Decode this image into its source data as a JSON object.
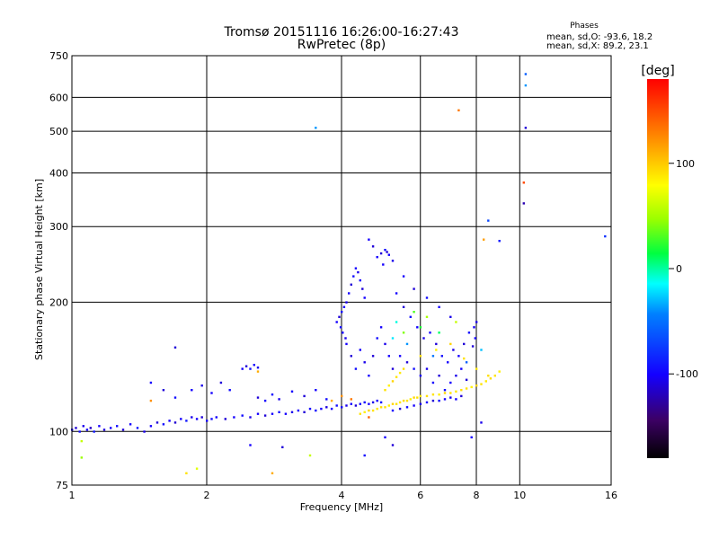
{
  "chart_data": {
    "type": "scatter",
    "title": "Tromsø 20151116 16:26:00-16:27:43",
    "subtitle": "RwPretec (8p)",
    "xlabel": "Frequency [MHz]",
    "ylabel": "Stationary phase Virtual Height [km]",
    "xscale": "log",
    "yscale": "log",
    "xlim": [
      1,
      16
    ],
    "ylim": [
      75,
      750
    ],
    "xticks": [
      1,
      2,
      4,
      6,
      8,
      10,
      16
    ],
    "yticks": [
      75,
      100,
      200,
      300,
      400,
      500,
      600,
      750
    ],
    "grid": true,
    "stats": {
      "heading": "Phases",
      "line_o": "mean, sd,O: -93.6, 18.2",
      "line_x": "mean, sd,X:  89.2, 23.1"
    },
    "colorbar": {
      "label": "[deg]",
      "range": [
        -180,
        180
      ],
      "ticks": [
        100,
        0,
        -100
      ]
    },
    "series": [
      {
        "points": [
          [
            1.0,
            101,
            -100
          ],
          [
            1.02,
            102,
            -110
          ],
          [
            1.04,
            100,
            -95
          ],
          [
            1.06,
            103,
            -105
          ],
          [
            1.08,
            101,
            -100
          ],
          [
            1.1,
            102,
            -115
          ],
          [
            1.12,
            100,
            -90
          ],
          [
            1.15,
            103,
            -100
          ],
          [
            1.18,
            101,
            -108
          ],
          [
            1.22,
            102,
            -100
          ],
          [
            1.26,
            103,
            -95
          ],
          [
            1.3,
            101,
            -110
          ],
          [
            1.35,
            104,
            -100
          ],
          [
            1.4,
            102,
            -90
          ],
          [
            1.45,
            100,
            -105
          ],
          [
            1.5,
            103,
            -100
          ],
          [
            1.55,
            105,
            -110
          ],
          [
            1.6,
            104,
            -95
          ],
          [
            1.65,
            106,
            -100
          ],
          [
            1.7,
            105,
            -112
          ],
          [
            1.75,
            107,
            -100
          ],
          [
            1.8,
            106,
            -90
          ],
          [
            1.85,
            108,
            -105
          ],
          [
            1.9,
            107,
            -100
          ],
          [
            1.95,
            108,
            -110
          ],
          [
            2.0,
            106,
            -100
          ],
          [
            2.05,
            107,
            -95
          ],
          [
            2.1,
            108,
            -100
          ],
          [
            2.2,
            107,
            -110
          ],
          [
            2.3,
            108,
            -100
          ],
          [
            2.4,
            109,
            -95
          ],
          [
            2.5,
            108,
            -105
          ],
          [
            2.6,
            110,
            -100
          ],
          [
            2.7,
            109,
            -110
          ],
          [
            2.8,
            110,
            -100
          ],
          [
            2.9,
            111,
            -95
          ],
          [
            3.0,
            110,
            -100
          ],
          [
            3.1,
            111,
            -105
          ],
          [
            3.2,
            112,
            -100
          ],
          [
            3.3,
            111,
            -110
          ],
          [
            3.4,
            113,
            -100
          ],
          [
            3.5,
            112,
            -95
          ],
          [
            3.6,
            113,
            -100
          ],
          [
            3.7,
            114,
            -108
          ],
          [
            3.8,
            113,
            -100
          ],
          [
            3.9,
            115,
            -95
          ],
          [
            4.0,
            114,
            -100
          ],
          [
            4.1,
            115,
            -105
          ],
          [
            4.2,
            116,
            -100
          ],
          [
            4.3,
            115,
            -110
          ],
          [
            4.4,
            116,
            -100
          ],
          [
            4.5,
            117,
            -95
          ],
          [
            4.6,
            116,
            -100
          ],
          [
            4.7,
            117,
            -105
          ],
          [
            4.8,
            118,
            -100
          ],
          [
            4.9,
            117,
            -90
          ],
          [
            1.5,
            130,
            -100
          ],
          [
            1.6,
            125,
            -110
          ],
          [
            1.7,
            120,
            -95
          ],
          [
            1.85,
            125,
            -100
          ],
          [
            1.95,
            128,
            -105
          ],
          [
            2.05,
            123,
            -100
          ],
          [
            2.15,
            130,
            -110
          ],
          [
            2.25,
            125,
            -95
          ],
          [
            2.4,
            140,
            -100
          ],
          [
            2.45,
            142,
            -110
          ],
          [
            2.5,
            140,
            -95
          ],
          [
            2.55,
            143,
            -100
          ],
          [
            2.6,
            141,
            -105
          ],
          [
            2.6,
            120,
            -110
          ],
          [
            2.7,
            118,
            -100
          ],
          [
            2.8,
            122,
            -95
          ],
          [
            2.9,
            119,
            -105
          ],
          [
            3.1,
            124,
            -100
          ],
          [
            3.3,
            121,
            -110
          ],
          [
            3.5,
            125,
            -100
          ],
          [
            3.7,
            119,
            -95
          ],
          [
            1.7,
            157,
            -110
          ],
          [
            3.5,
            510,
            -40
          ],
          [
            1.05,
            95,
            60
          ],
          [
            3.9,
            180,
            -100
          ],
          [
            3.95,
            185,
            -110
          ],
          [
            4.0,
            190,
            -95
          ],
          [
            4.05,
            195,
            -100
          ],
          [
            4.1,
            200,
            -105
          ],
          [
            4.15,
            210,
            -100
          ],
          [
            4.2,
            220,
            -110
          ],
          [
            4.25,
            230,
            -95
          ],
          [
            4.3,
            240,
            -100
          ],
          [
            4.35,
            235,
            -105
          ],
          [
            4.4,
            225,
            -100
          ],
          [
            4.45,
            215,
            -110
          ],
          [
            4.5,
            205,
            -100
          ],
          [
            3.98,
            175,
            -95
          ],
          [
            4.02,
            170,
            -100
          ],
          [
            4.08,
            165,
            -105
          ],
          [
            4.1,
            160,
            -100
          ],
          [
            4.2,
            150,
            -110
          ],
          [
            4.3,
            140,
            -95
          ],
          [
            4.4,
            155,
            -100
          ],
          [
            4.5,
            145,
            -105
          ],
          [
            4.6,
            135,
            -100
          ],
          [
            4.7,
            150,
            -110
          ],
          [
            4.8,
            165,
            -95
          ],
          [
            4.9,
            175,
            -100
          ],
          [
            5.0,
            160,
            -105
          ],
          [
            5.1,
            150,
            -100
          ],
          [
            5.2,
            140,
            -110
          ],
          [
            4.8,
            255,
            -100
          ],
          [
            4.9,
            260,
            -110
          ],
          [
            5.0,
            265,
            -95
          ],
          [
            5.1,
            258,
            -100
          ],
          [
            5.2,
            250,
            -105
          ],
          [
            4.95,
            245,
            -100
          ],
          [
            5.05,
            262,
            -110
          ],
          [
            4.6,
            280,
            -100
          ],
          [
            4.7,
            270,
            -110
          ],
          [
            5.3,
            210,
            -100
          ],
          [
            5.5,
            195,
            -110
          ],
          [
            5.7,
            185,
            -95
          ],
          [
            5.9,
            175,
            -100
          ],
          [
            6.1,
            165,
            -105
          ],
          [
            6.3,
            170,
            -100
          ],
          [
            6.5,
            160,
            -110
          ],
          [
            6.7,
            150,
            -95
          ],
          [
            6.9,
            145,
            -100
          ],
          [
            7.1,
            155,
            -105
          ],
          [
            7.3,
            150,
            -100
          ],
          [
            7.5,
            160,
            -110
          ],
          [
            7.7,
            170,
            -95
          ],
          [
            7.9,
            175,
            -100
          ],
          [
            8.0,
            180,
            -105
          ],
          [
            7.95,
            165,
            -100
          ],
          [
            7.85,
            158,
            -110
          ],
          [
            5.4,
            150,
            -100
          ],
          [
            5.6,
            145,
            -110
          ],
          [
            5.8,
            140,
            -95
          ],
          [
            6.0,
            135,
            -100
          ],
          [
            6.2,
            140,
            -105
          ],
          [
            6.4,
            130,
            -100
          ],
          [
            6.6,
            135,
            -110
          ],
          [
            6.8,
            125,
            -95
          ],
          [
            7.0,
            130,
            -100
          ],
          [
            7.2,
            135,
            -105
          ],
          [
            7.4,
            140,
            -100
          ],
          [
            7.6,
            132,
            -110
          ],
          [
            5.2,
            112,
            -100
          ],
          [
            5.4,
            113,
            -110
          ],
          [
            5.6,
            114,
            -95
          ],
          [
            5.8,
            115,
            -100
          ],
          [
            6.0,
            116,
            -105
          ],
          [
            6.2,
            117,
            -100
          ],
          [
            6.4,
            118,
            -110
          ],
          [
            6.6,
            118,
            -95
          ],
          [
            6.8,
            119,
            -100
          ],
          [
            7.0,
            120,
            -105
          ],
          [
            7.2,
            119,
            -100
          ],
          [
            7.4,
            121,
            -110
          ],
          [
            5.5,
            230,
            -100
          ],
          [
            5.8,
            215,
            -110
          ],
          [
            6.2,
            205,
            -95
          ],
          [
            6.6,
            195,
            -100
          ],
          [
            7.0,
            185,
            -105
          ],
          [
            5.0,
            97,
            -100
          ],
          [
            5.2,
            93,
            -110
          ],
          [
            4.5,
            88,
            -95
          ],
          [
            7.8,
            97,
            -100
          ],
          [
            8.2,
            105,
            -105
          ],
          [
            10.3,
            680,
            -60
          ],
          [
            10.3,
            640,
            -40
          ],
          [
            10.3,
            510,
            -110
          ],
          [
            10.2,
            340,
            -120
          ],
          [
            15.5,
            285,
            -80
          ],
          [
            8.5,
            310,
            -70
          ],
          [
            9.0,
            278,
            -90
          ],
          [
            2.5,
            93,
            -100
          ],
          [
            2.95,
            92,
            -110
          ]
        ]
      },
      {
        "points": [
          [
            4.4,
            110,
            90
          ],
          [
            4.5,
            111,
            85
          ],
          [
            4.6,
            112,
            95
          ],
          [
            4.7,
            112,
            90
          ],
          [
            4.8,
            113,
            88
          ],
          [
            4.9,
            114,
            92
          ],
          [
            5.0,
            114,
            90
          ],
          [
            5.1,
            115,
            85
          ],
          [
            5.2,
            116,
            95
          ],
          [
            5.3,
            116,
            90
          ],
          [
            5.4,
            117,
            88
          ],
          [
            5.5,
            118,
            92
          ],
          [
            5.6,
            118,
            90
          ],
          [
            5.7,
            119,
            85
          ],
          [
            5.8,
            120,
            95
          ],
          [
            5.9,
            120,
            90
          ],
          [
            6.0,
            121,
            88
          ],
          [
            6.2,
            121,
            92
          ],
          [
            6.4,
            122,
            90
          ],
          [
            6.6,
            122,
            85
          ],
          [
            6.8,
            123,
            95
          ],
          [
            7.0,
            123,
            90
          ],
          [
            7.2,
            124,
            88
          ],
          [
            7.4,
            125,
            92
          ],
          [
            7.6,
            126,
            90
          ],
          [
            7.8,
            127,
            85
          ],
          [
            8.0,
            128,
            95
          ],
          [
            8.2,
            129,
            90
          ],
          [
            8.4,
            131,
            88
          ],
          [
            8.6,
            133,
            92
          ],
          [
            8.8,
            135,
            90
          ],
          [
            9.0,
            138,
            85
          ],
          [
            5.0,
            125,
            90
          ],
          [
            5.1,
            128,
            85
          ],
          [
            5.2,
            131,
            95
          ],
          [
            5.3,
            134,
            90
          ],
          [
            5.4,
            137,
            88
          ],
          [
            5.5,
            140,
            92
          ],
          [
            6.0,
            150,
            90
          ],
          [
            6.5,
            155,
            85
          ],
          [
            7.0,
            160,
            95
          ],
          [
            7.5,
            148,
            90
          ],
          [
            8.0,
            140,
            88
          ],
          [
            8.5,
            135,
            92
          ],
          [
            5.5,
            170,
            40
          ],
          [
            6.0,
            175,
            20
          ],
          [
            5.8,
            190,
            30
          ],
          [
            6.2,
            185,
            50
          ],
          [
            6.6,
            170,
            10
          ],
          [
            7.2,
            180,
            60
          ],
          [
            5.2,
            165,
            -20
          ],
          [
            5.6,
            160,
            -40
          ],
          [
            6.4,
            150,
            -50
          ],
          [
            7.6,
            145,
            -60
          ],
          [
            8.2,
            155,
            -30
          ],
          [
            5.3,
            180,
            -10
          ],
          [
            4.0,
            121,
            120
          ],
          [
            4.2,
            119,
            130
          ],
          [
            4.6,
            108,
            140
          ],
          [
            3.8,
            118,
            110
          ],
          [
            7.3,
            560,
            130
          ],
          [
            8.3,
            280,
            115
          ],
          [
            10.2,
            380,
            150
          ],
          [
            2.6,
            138,
            110
          ],
          [
            1.8,
            80,
            90
          ],
          [
            1.9,
            82,
            70
          ],
          [
            2.8,
            80,
            110
          ],
          [
            1.5,
            118,
            120
          ],
          [
            1.05,
            87,
            45
          ],
          [
            3.4,
            88,
            60
          ]
        ]
      }
    ]
  }
}
